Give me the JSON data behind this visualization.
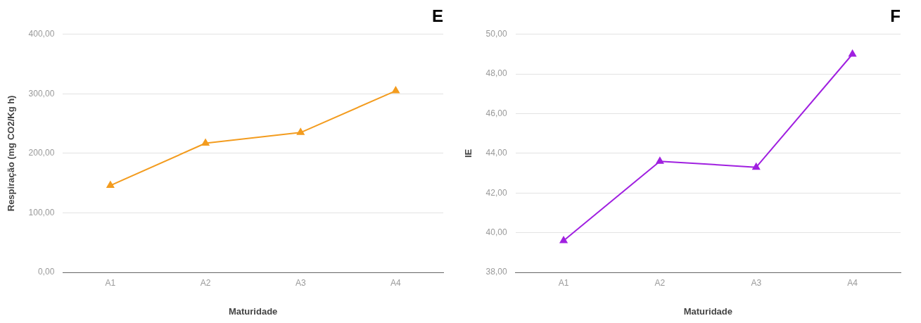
{
  "chart_data": [
    {
      "type": "line",
      "title": "E",
      "xlabel": "Maturidade",
      "ylabel": "Respiração (mg CO2/Kg h)",
      "categories": [
        "A1",
        "A2",
        "A3",
        "A4"
      ],
      "series": [
        {
          "color": "#f39c1f",
          "values": [
            146,
            217,
            235,
            305
          ]
        }
      ],
      "ylim": [
        0,
        400
      ],
      "yticks": [
        {
          "value": 0,
          "label": "0,00"
        },
        {
          "value": 100,
          "label": "100,00"
        },
        {
          "value": 200,
          "label": "200,00"
        },
        {
          "value": 300,
          "label": "300,00"
        },
        {
          "value": 400,
          "label": "400,00"
        }
      ],
      "grid": "y",
      "legend": false,
      "marker": "triangle",
      "line_style": "solid"
    },
    {
      "type": "line",
      "title": "F",
      "xlabel": "Maturidade",
      "ylabel": "IE",
      "categories": [
        "A1",
        "A2",
        "A3",
        "A4"
      ],
      "series": [
        {
          "color": "#a020e0",
          "values": [
            39.6,
            43.6,
            43.3,
            49.0
          ]
        }
      ],
      "ylim": [
        38,
        50
      ],
      "yticks": [
        {
          "value": 38,
          "label": "38,00"
        },
        {
          "value": 40,
          "label": "40,00"
        },
        {
          "value": 42,
          "label": "42,00"
        },
        {
          "value": 44,
          "label": "44,00"
        },
        {
          "value": 46,
          "label": "46,00"
        },
        {
          "value": 48,
          "label": "48,00"
        },
        {
          "value": 50,
          "label": "50,00"
        }
      ],
      "grid": "y",
      "legend": false,
      "marker": "triangle",
      "line_style": "solid"
    }
  ]
}
